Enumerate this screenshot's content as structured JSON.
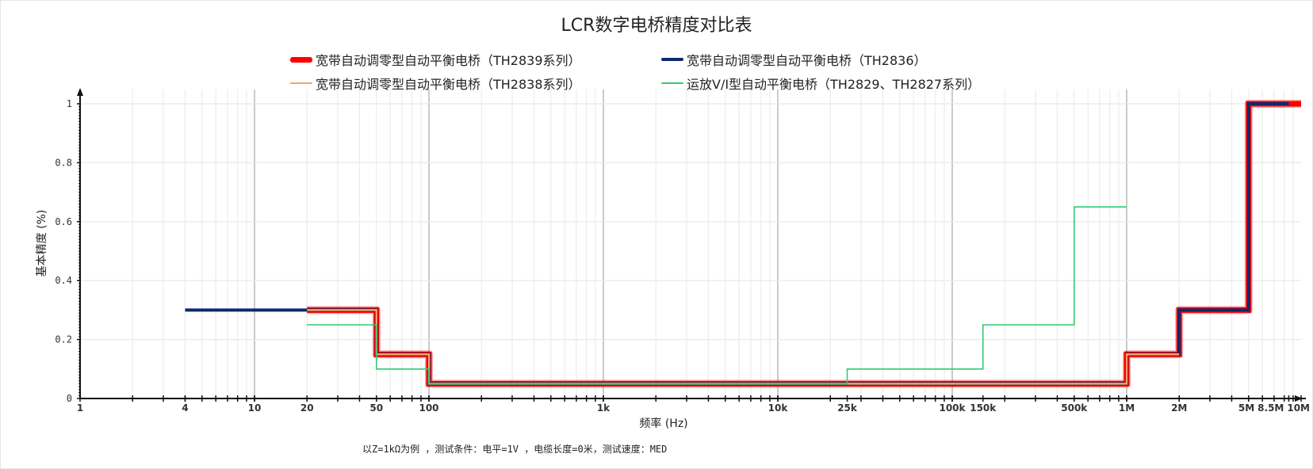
{
  "chart_data": {
    "type": "line",
    "title": "LCR数字电桥精度对比表",
    "xlabel": "频率 (Hz)",
    "ylabel": "基本精度 (%)",
    "x_scale": "log",
    "xlim": [
      1,
      10000000
    ],
    "ylim": [
      0,
      1
    ],
    "grid": true,
    "legend_position": "top",
    "x_ticks": [
      {
        "value": 1,
        "label": "1"
      },
      {
        "value": 4,
        "label": "4"
      },
      {
        "value": 10,
        "label": "10"
      },
      {
        "value": 20,
        "label": "20"
      },
      {
        "value": 50,
        "label": "50"
      },
      {
        "value": 100,
        "label": "100"
      },
      {
        "value": 1000,
        "label": "1k"
      },
      {
        "value": 10000,
        "label": "10k"
      },
      {
        "value": 25000,
        "label": "25k"
      },
      {
        "value": 100000,
        "label": "100k"
      },
      {
        "value": 150000,
        "label": "150k"
      },
      {
        "value": 500000,
        "label": "500k"
      },
      {
        "value": 1000000,
        "label": "1M"
      },
      {
        "value": 2000000,
        "label": "2M"
      },
      {
        "value": 5000000,
        "label": "5M"
      },
      {
        "value": 8500000,
        "label": "8.5M"
      },
      {
        "value": 10000000,
        "label": "10M"
      }
    ],
    "y_ticks": [
      {
        "value": 0,
        "label": "0"
      },
      {
        "value": 0.2,
        "label": "0.2"
      },
      {
        "value": 0.4,
        "label": "0.4"
      },
      {
        "value": 0.6,
        "label": "0.6"
      },
      {
        "value": 0.8,
        "label": "0.8"
      },
      {
        "value": 1,
        "label": "1"
      }
    ],
    "series": [
      {
        "name": "宽带自动调零型自动平衡电桥（TH2839系列）",
        "color": "#ff0000",
        "steps": [
          {
            "from": 20,
            "to": 50,
            "value": 0.3
          },
          {
            "from": 50,
            "to": 100,
            "value": 0.15
          },
          {
            "from": 100,
            "to": 1000000,
            "value": 0.05
          },
          {
            "from": 1000000,
            "to": 2000000,
            "value": 0.15
          },
          {
            "from": 2000000,
            "to": 5000000,
            "value": 0.3
          },
          {
            "from": 5000000,
            "to": 10000000,
            "value": 1
          }
        ]
      },
      {
        "name": "宽带自动调零型自动平衡电桥（TH2836）",
        "color": "#0d2a6b",
        "steps": [
          {
            "from": 4,
            "to": 50,
            "value": 0.3
          },
          {
            "from": 50,
            "to": 100,
            "value": 0.15
          },
          {
            "from": 100,
            "to": 1000000,
            "value": 0.05
          },
          {
            "from": 1000000,
            "to": 2000000,
            "value": 0.15
          },
          {
            "from": 2000000,
            "to": 5000000,
            "value": 0.3
          },
          {
            "from": 5000000,
            "to": 8500000,
            "value": 1
          }
        ]
      },
      {
        "name": "宽带自动调零型自动平衡电桥（TH2838系列）",
        "color": "#f4a460",
        "steps": [
          {
            "from": 20,
            "to": 50,
            "value": 0.3
          },
          {
            "from": 50,
            "to": 100,
            "value": 0.15
          },
          {
            "from": 100,
            "to": 1000000,
            "value": 0.05
          },
          {
            "from": 1000000,
            "to": 2000000,
            "value": 0.15
          }
        ]
      },
      {
        "name": "运放V/I型自动平衡电桥（TH2829、TH2827系列）",
        "color": "#2ecc71",
        "steps": [
          {
            "from": 20,
            "to": 50,
            "value": 0.25
          },
          {
            "from": 50,
            "to": 100,
            "value": 0.1
          },
          {
            "from": 100,
            "to": 25000,
            "value": 0.05
          },
          {
            "from": 25000,
            "to": 150000,
            "value": 0.1
          },
          {
            "from": 150000,
            "to": 500000,
            "value": 0.25
          },
          {
            "from": 500000,
            "to": 1000000,
            "value": 0.65
          }
        ]
      }
    ],
    "footnote": "以Z=1kΩ为例 ，测试条件：电平=1V ，电缆长度=0米，测试速度：MED"
  }
}
